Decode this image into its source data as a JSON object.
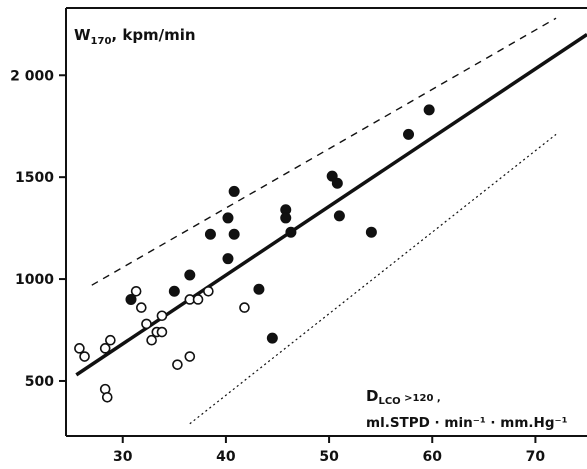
{
  "chart_data": {
    "type": "scatter",
    "ylabel_main": "W",
    "ylabel_sub": "170",
    "ylabel_rest": ", kpm/min",
    "x_ticks": [
      "30",
      "40",
      "50",
      "60",
      "70"
    ],
    "y_ticks": [
      "500",
      "1000",
      "1500",
      "2 000"
    ],
    "x_tick_values": [
      30,
      40,
      50,
      60,
      70
    ],
    "y_tick_values": [
      500,
      1000,
      1500,
      2000
    ],
    "xlim": [
      24.5,
      75
    ],
    "ylim": [
      230,
      2330
    ],
    "annotation_line1_main": "D",
    "annotation_line1_sub": "LCO",
    "annotation_line1_rest": " >120 ,",
    "annotation_line2": "ml.STPD · min⁻¹ · mm.Hg⁻¹",
    "regression": {
      "x": [
        25.5,
        75
      ],
      "y": [
        530,
        2200
      ]
    },
    "upper_limit": {
      "x": [
        27,
        72
      ],
      "y": [
        970,
        2280
      ]
    },
    "lower_limit": {
      "x": [
        36.5,
        72
      ],
      "y": [
        290,
        1710
      ]
    },
    "series": [
      {
        "marker": "filled",
        "points": [
          [
            30.8,
            900
          ],
          [
            35,
            940
          ],
          [
            36.5,
            1020
          ],
          [
            38.5,
            1220
          ],
          [
            40.2,
            1300
          ],
          [
            40.2,
            1100
          ],
          [
            40.8,
            1430
          ],
          [
            40.8,
            1220
          ],
          [
            43.2,
            950
          ],
          [
            44.5,
            710
          ],
          [
            45.8,
            1340
          ],
          [
            45.8,
            1300
          ],
          [
            46.3,
            1230
          ],
          [
            50.3,
            1505
          ],
          [
            50.8,
            1470
          ],
          [
            51,
            1310
          ],
          [
            54.1,
            1230
          ],
          [
            57.7,
            1710
          ],
          [
            59.7,
            1830
          ]
        ]
      },
      {
        "marker": "open",
        "points": [
          [
            25.8,
            660
          ],
          [
            26.3,
            620
          ],
          [
            28.3,
            660
          ],
          [
            28.3,
            460
          ],
          [
            28.5,
            420
          ],
          [
            28.8,
            700
          ],
          [
            31.3,
            940
          ],
          [
            31.8,
            860
          ],
          [
            32.3,
            780
          ],
          [
            32.8,
            700
          ],
          [
            33.3,
            740
          ],
          [
            33.8,
            820
          ],
          [
            33.8,
            740
          ],
          [
            35.3,
            580
          ],
          [
            36.5,
            900
          ],
          [
            36.5,
            620
          ],
          [
            37.3,
            900
          ],
          [
            38.3,
            940
          ],
          [
            41.8,
            860
          ]
        ]
      }
    ],
    "grid": false
  }
}
